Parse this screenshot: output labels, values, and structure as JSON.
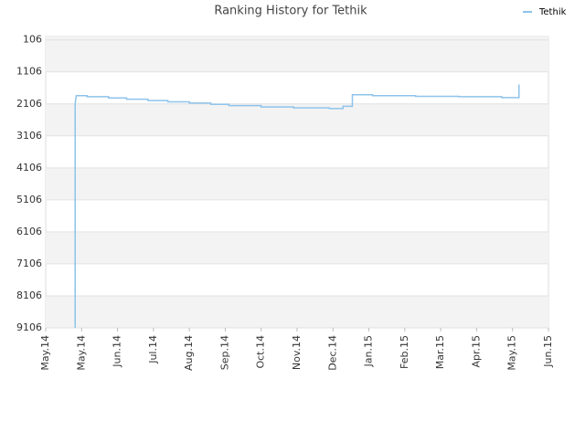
{
  "chart_data": {
    "type": "line",
    "title": "Ranking History for Tethik",
    "series": [
      {
        "name": "Tethik",
        "color": "#8ec3ea",
        "x": [
          0.82,
          0.82,
          0.85,
          1.15,
          1.15,
          1.75,
          1.75,
          2.25,
          2.25,
          2.85,
          2.85,
          3.4,
          3.4,
          4.0,
          4.0,
          4.6,
          4.6,
          5.1,
          5.1,
          6.0,
          6.0,
          6.9,
          6.9,
          7.9,
          7.9,
          8.28,
          8.28,
          8.54,
          8.54,
          9.1,
          9.1,
          10.3,
          10.3,
          11.5,
          11.5,
          12.7,
          12.7,
          13.18,
          13.18
        ],
        "values": [
          9106,
          2106,
          1850,
          1850,
          1880,
          1880,
          1920,
          1920,
          1960,
          1960,
          2000,
          2000,
          2040,
          2040,
          2080,
          2080,
          2120,
          2120,
          2160,
          2160,
          2200,
          2200,
          2230,
          2230,
          2250,
          2250,
          2180,
          2180,
          1820,
          1820,
          1850,
          1850,
          1870,
          1870,
          1880,
          1880,
          1910,
          1910,
          1500
        ]
      }
    ],
    "xlim": [
      0,
      14
    ],
    "xticks": [
      {
        "value": 0,
        "label": "May.14"
      },
      {
        "value": 1,
        "label": "May.14"
      },
      {
        "value": 2,
        "label": "Jun.14"
      },
      {
        "value": 3,
        "label": "Jul.14"
      },
      {
        "value": 4,
        "label": "Aug.14"
      },
      {
        "value": 5,
        "label": "Sep.14"
      },
      {
        "value": 6,
        "label": "Oct.14"
      },
      {
        "value": 7,
        "label": "Nov.14"
      },
      {
        "value": 8,
        "label": "Dec.14"
      },
      {
        "value": 9,
        "label": "Jan.15"
      },
      {
        "value": 10,
        "label": "Feb.15"
      },
      {
        "value": 11,
        "label": "Mar.15"
      },
      {
        "value": 12,
        "label": "Apr.15"
      },
      {
        "value": 13,
        "label": "May.15"
      },
      {
        "value": 14,
        "label": "Jun.15"
      }
    ],
    "ylim": [
      9106,
      0
    ],
    "yticks": [
      106,
      1106,
      2106,
      3106,
      4106,
      5106,
      6106,
      7106,
      8106,
      9106
    ],
    "grid": true,
    "legend": "top-right"
  }
}
